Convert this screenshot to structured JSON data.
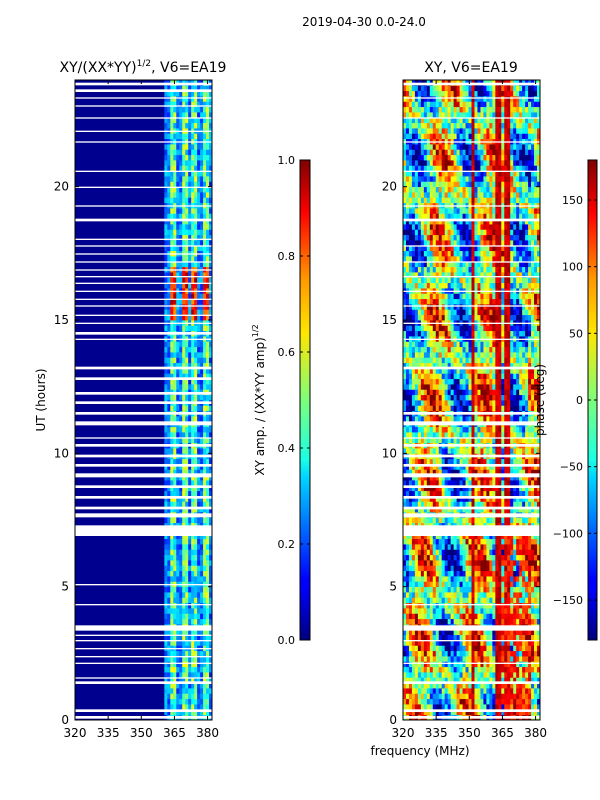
{
  "suptitle": "2019-04-30 0.0-24.0",
  "chart_data": [
    {
      "type": "heatmap",
      "title": "XY/(XX*YY)^1/2, V6=EA19",
      "title_parts": {
        "main": "XY/(XX*YY)",
        "sup": "1/2",
        "rest": ", V6=EA19"
      },
      "xlabel": "",
      "ylabel": "UT (hours)",
      "xlim": [
        320,
        382
      ],
      "ylim": [
        0,
        24
      ],
      "x_ticks": [
        320,
        335,
        350,
        365,
        380
      ],
      "y_ticks": [
        0,
        5,
        10,
        15,
        20
      ],
      "colormap": "jet",
      "background_color": "#00008f",
      "colorbar": {
        "label": "XY amp. / (XX*YY amp)^1/2",
        "label_parts": {
          "main": "XY amp. / (XX*YY amp)",
          "sup": "1/2"
        },
        "range": [
          0.0,
          1.0
        ],
        "ticks": [
          "0.0",
          "0.2",
          "0.4",
          "0.6",
          "0.8",
          "1.0"
        ]
      },
      "flagged_hours": [
        [
          0.05,
          0.15
        ],
        [
          0.3,
          0.4
        ],
        [
          1.35,
          1.45
        ],
        [
          1.55,
          1.6
        ],
        [
          2.1,
          2.15
        ],
        [
          2.35,
          2.4
        ],
        [
          2.65,
          2.7
        ],
        [
          2.95,
          3.0
        ],
        [
          3.15,
          3.2
        ],
        [
          3.35,
          3.55
        ],
        [
          4.3,
          4.35
        ],
        [
          5.05,
          5.1
        ],
        [
          6.9,
          7.3
        ],
        [
          7.6,
          7.75
        ],
        [
          7.9,
          8.0
        ],
        [
          8.3,
          8.4
        ],
        [
          8.7,
          8.8
        ],
        [
          9.1,
          9.25
        ],
        [
          9.5,
          9.6
        ],
        [
          9.85,
          9.95
        ],
        [
          10.25,
          10.35
        ],
        [
          10.55,
          10.6
        ],
        [
          11.05,
          11.2
        ],
        [
          11.45,
          11.55
        ],
        [
          11.85,
          11.95
        ],
        [
          12.2,
          12.3
        ],
        [
          12.75,
          12.85
        ],
        [
          13.15,
          13.25
        ],
        [
          14.25,
          14.3
        ],
        [
          14.45,
          14.55
        ],
        [
          14.85,
          14.9
        ],
        [
          15.15,
          15.2
        ],
        [
          15.5,
          15.55
        ],
        [
          15.75,
          15.8
        ],
        [
          16.05,
          16.1
        ],
        [
          16.35,
          16.4
        ],
        [
          16.6,
          16.65
        ],
        [
          16.85,
          16.9
        ],
        [
          17.15,
          17.2
        ],
        [
          17.45,
          17.5
        ],
        [
          17.75,
          17.8
        ],
        [
          18.0,
          18.05
        ],
        [
          18.7,
          18.8
        ],
        [
          19.25,
          19.3
        ],
        [
          19.95,
          20.0
        ],
        [
          20.55,
          20.6
        ],
        [
          21.65,
          21.7
        ],
        [
          22.05,
          22.1
        ],
        [
          22.55,
          22.6
        ],
        [
          23.0,
          23.05
        ],
        [
          23.3,
          23.35
        ],
        [
          23.55,
          23.65
        ],
        [
          23.8,
          23.9
        ]
      ],
      "bright_channels_mhz": [
        [
          362.5,
          365.5
        ],
        [
          368.5,
          371
        ],
        [
          372.5,
          375
        ],
        [
          377.5,
          380
        ]
      ],
      "amplitude_levels": {
        "background": 0.05,
        "channels_typical": 0.45,
        "peak_hours_15_17": 0.85
      }
    },
    {
      "type": "heatmap",
      "title": "XY, V6=EA19",
      "xlabel": "frequency (MHz)",
      "ylabel": "",
      "xlim": [
        320,
        382
      ],
      "ylim": [
        0,
        24
      ],
      "x_ticks": [
        320,
        335,
        350,
        365,
        380
      ],
      "y_ticks": [
        0,
        5,
        10,
        15,
        20
      ],
      "colormap": "jet",
      "colorbar": {
        "label": "phase (deg)",
        "range": [
          -180,
          180
        ],
        "ticks": [
          "-150",
          "-100",
          "-50",
          "0",
          "50",
          "100",
          "150"
        ]
      },
      "flagged_hours": [
        [
          0.05,
          0.15
        ],
        [
          0.3,
          0.4
        ],
        [
          1.35,
          1.45
        ],
        [
          2.1,
          2.15
        ],
        [
          2.95,
          3.0
        ],
        [
          3.35,
          3.55
        ],
        [
          4.3,
          4.35
        ],
        [
          6.9,
          7.3
        ],
        [
          7.6,
          7.75
        ],
        [
          7.9,
          8.0
        ],
        [
          8.3,
          8.4
        ],
        [
          8.7,
          8.8
        ],
        [
          9.1,
          9.25
        ],
        [
          9.5,
          9.6
        ],
        [
          9.85,
          9.95
        ],
        [
          10.25,
          10.35
        ],
        [
          10.55,
          10.6
        ],
        [
          11.05,
          11.2
        ],
        [
          11.45,
          11.55
        ],
        [
          13.15,
          13.25
        ],
        [
          14.25,
          14.3
        ],
        [
          14.85,
          14.9
        ],
        [
          15.5,
          15.55
        ],
        [
          16.05,
          16.1
        ],
        [
          16.6,
          16.65
        ],
        [
          17.15,
          17.2
        ],
        [
          17.75,
          17.8
        ],
        [
          18.7,
          18.8
        ],
        [
          19.25,
          19.3
        ],
        [
          20.55,
          20.6
        ],
        [
          21.65,
          21.7
        ],
        [
          22.55,
          22.6
        ],
        [
          23.3,
          23.35
        ],
        [
          23.8,
          23.9
        ]
      ],
      "phase_features_mhz": [
        [
          351,
          352.5
        ],
        [
          362,
          364
        ],
        [
          366,
          368
        ]
      ]
    }
  ]
}
